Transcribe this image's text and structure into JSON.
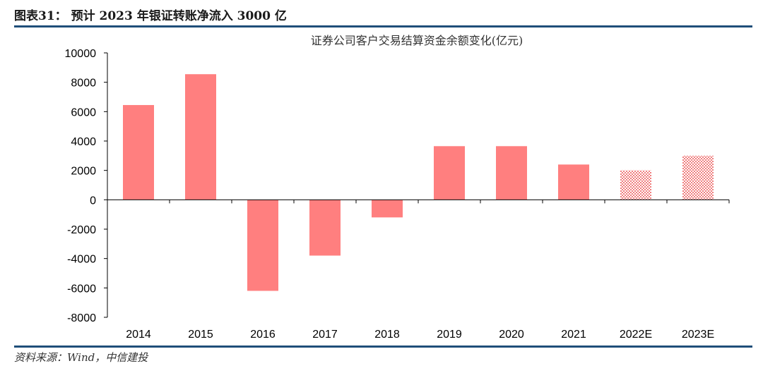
{
  "figure": {
    "title": "图表31：  预计 2023 年银证转账净流入 3000 亿",
    "source": "资料来源：Wind，中信建投"
  },
  "colors": {
    "bar": "#ff7f7f",
    "estimate": "#f07f7f",
    "axis": "#000000",
    "rule": "#1f4e79"
  },
  "chart_data": {
    "type": "bar",
    "title": "证券公司客户交易结算资金余额变化(亿元)",
    "xlabel": "",
    "ylabel": "",
    "categories": [
      "2014",
      "2015",
      "2016",
      "2017",
      "2018",
      "2019",
      "2020",
      "2021",
      "2022E",
      "2023E"
    ],
    "values": [
      6450,
      8550,
      -6200,
      -3800,
      -1200,
      3650,
      3650,
      2400,
      2000,
      3000
    ],
    "estimated": [
      false,
      false,
      false,
      false,
      false,
      false,
      false,
      false,
      true,
      true
    ],
    "ylim": [
      -8000,
      10000
    ],
    "yticks": [
      10000,
      8000,
      6000,
      4000,
      2000,
      0,
      -2000,
      -4000,
      -6000,
      -8000
    ],
    "ytick_labels": [
      "10000",
      "8000",
      "6000",
      "4000",
      "2000",
      "0",
      "-2000",
      "-4000",
      "-6000",
      "-8000"
    ],
    "grid": false,
    "legend": "none"
  }
}
